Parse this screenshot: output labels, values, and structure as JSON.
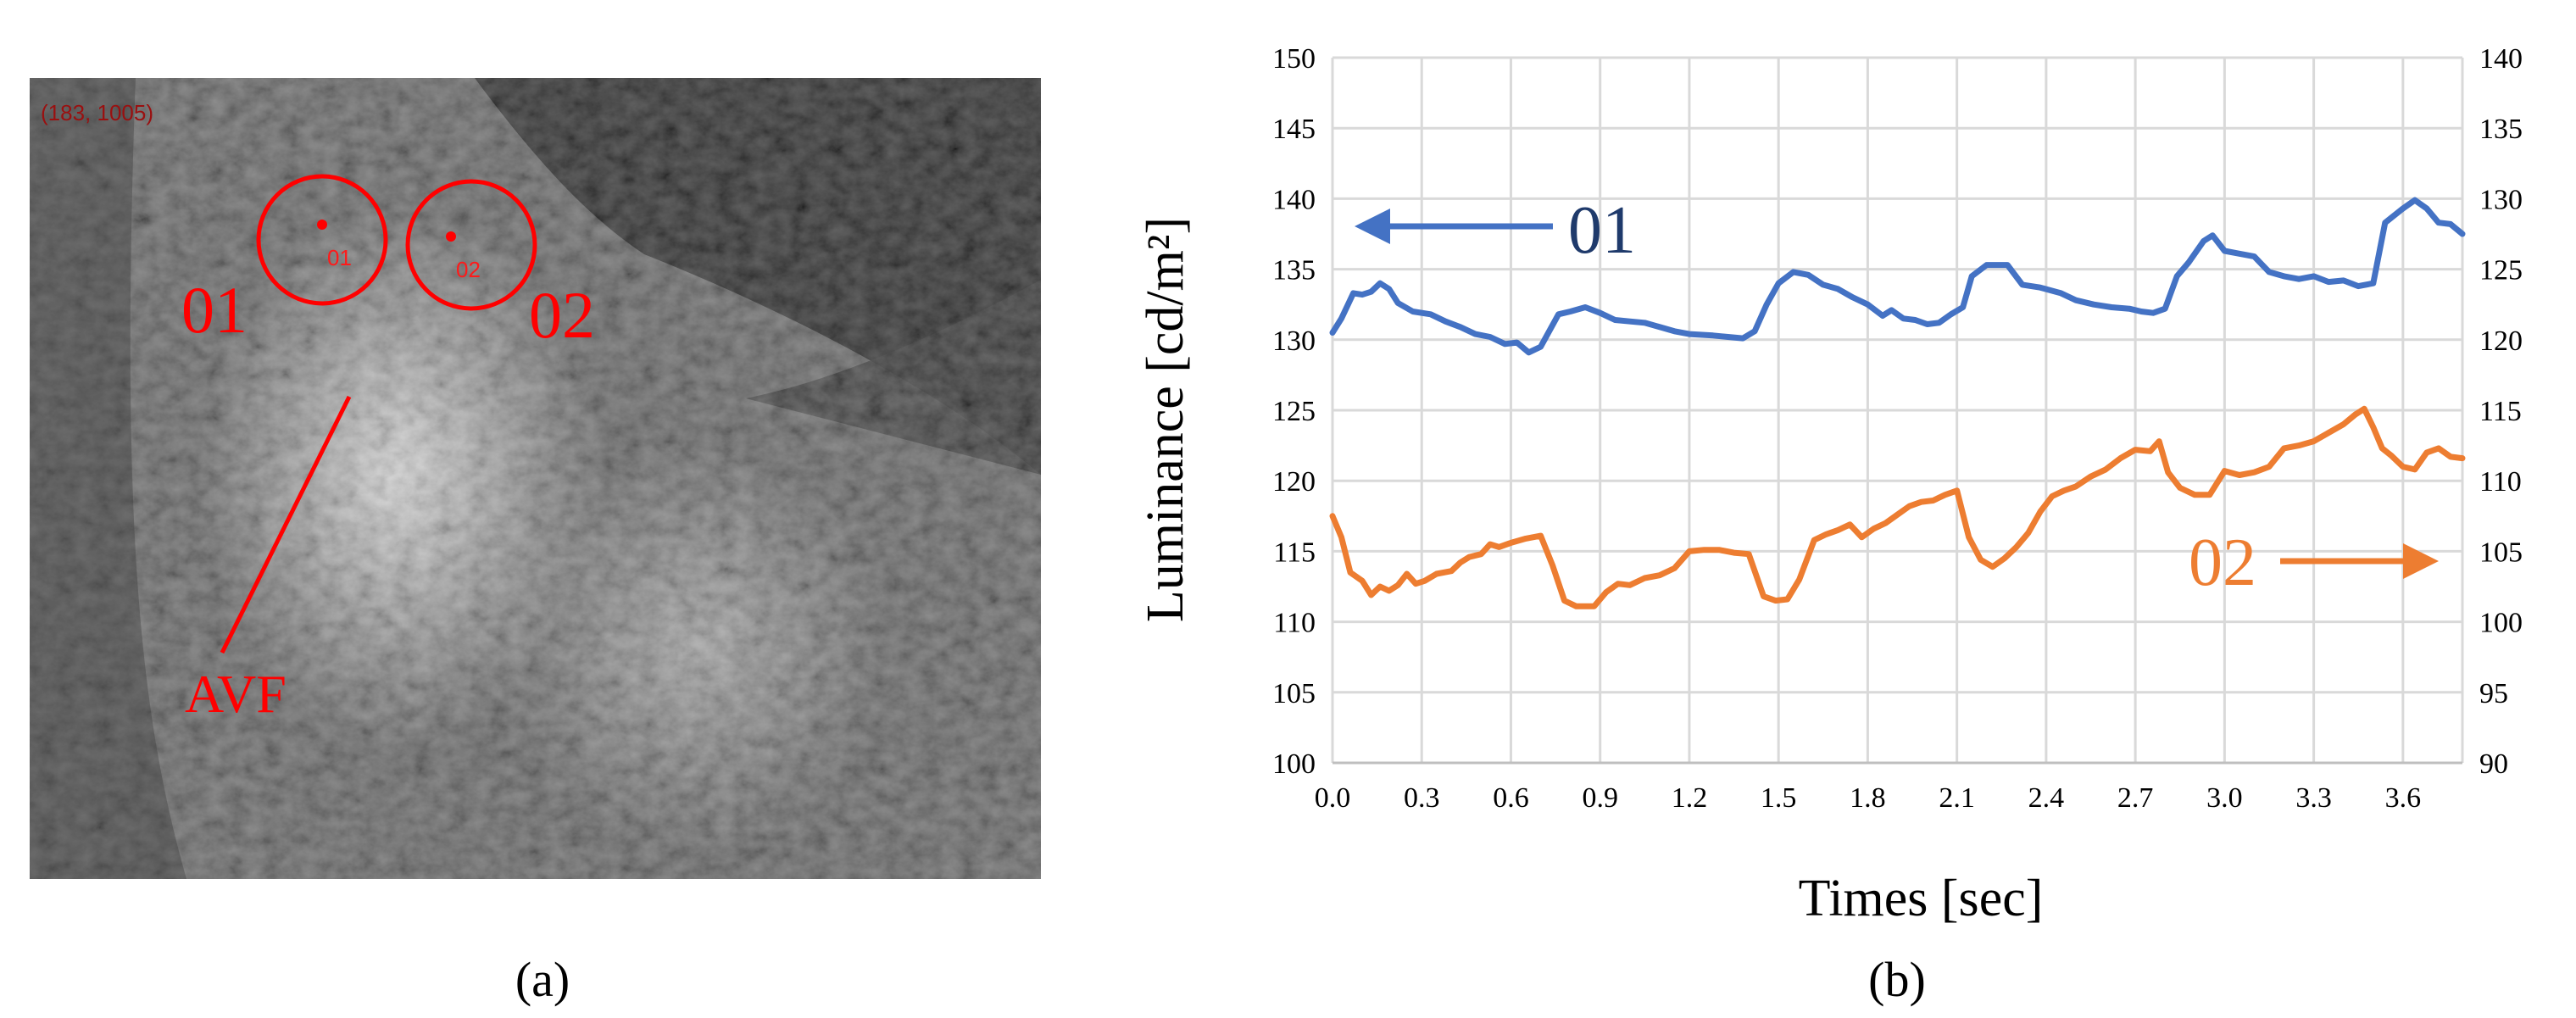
{
  "panels": {
    "a": {
      "label": "(a)",
      "coord_readout": "(183, 1005)",
      "markers": [
        "01",
        "02"
      ],
      "roi_labels": [
        "01",
        "02"
      ],
      "annotation": "AVF",
      "marker_color": "#ff0000"
    },
    "b": {
      "label": "(b)"
    }
  },
  "chart_data": {
    "type": "line",
    "title": "",
    "xlabel": "Times [sec]",
    "ylabel": "Luminance  [cd/m²]",
    "x_ticks": [
      "0.0",
      "0.3",
      "0.6",
      "0.9",
      "1.2",
      "1.5",
      "1.8",
      "2.1",
      "2.4",
      "2.7",
      "3.0",
      "3.3",
      "3.6"
    ],
    "xlim": [
      0,
      3.8
    ],
    "left_ylim": [
      100,
      150
    ],
    "left_ticks": [
      "100",
      "105",
      "110",
      "115",
      "120",
      "125",
      "130",
      "135",
      "140",
      "145",
      "150"
    ],
    "right_ylim": [
      90,
      140
    ],
    "right_ticks": [
      "90",
      "95",
      "100",
      "105",
      "110",
      "115",
      "120",
      "125",
      "130",
      "135",
      "140"
    ],
    "grid": true,
    "series": [
      {
        "name": "01",
        "axis": "left",
        "color": "#4472c4",
        "arrow": "left",
        "points": [
          [
            0.0,
            130.5
          ],
          [
            0.03,
            131.5
          ],
          [
            0.07,
            133.3
          ],
          [
            0.1,
            133.2
          ],
          [
            0.13,
            133.4
          ],
          [
            0.16,
            134.0
          ],
          [
            0.19,
            133.6
          ],
          [
            0.22,
            132.6
          ],
          [
            0.27,
            132.0
          ],
          [
            0.33,
            131.8
          ],
          [
            0.38,
            131.3
          ],
          [
            0.43,
            130.9
          ],
          [
            0.48,
            130.4
          ],
          [
            0.53,
            130.2
          ],
          [
            0.58,
            129.7
          ],
          [
            0.62,
            129.8
          ],
          [
            0.66,
            129.1
          ],
          [
            0.7,
            129.5
          ],
          [
            0.76,
            131.8
          ],
          [
            0.8,
            132.0
          ],
          [
            0.85,
            132.3
          ],
          [
            0.9,
            131.9
          ],
          [
            0.95,
            131.4
          ],
          [
            1.0,
            131.3
          ],
          [
            1.05,
            131.2
          ],
          [
            1.1,
            130.9
          ],
          [
            1.15,
            130.6
          ],
          [
            1.2,
            130.4
          ],
          [
            1.28,
            130.3
          ],
          [
            1.33,
            130.2
          ],
          [
            1.38,
            130.1
          ],
          [
            1.42,
            130.6
          ],
          [
            1.46,
            132.5
          ],
          [
            1.5,
            134.0
          ],
          [
            1.55,
            134.8
          ],
          [
            1.6,
            134.6
          ],
          [
            1.65,
            133.9
          ],
          [
            1.7,
            133.6
          ],
          [
            1.75,
            133.0
          ],
          [
            1.8,
            132.5
          ],
          [
            1.85,
            131.7
          ],
          [
            1.88,
            132.1
          ],
          [
            1.92,
            131.5
          ],
          [
            1.96,
            131.4
          ],
          [
            2.0,
            131.1
          ],
          [
            2.04,
            131.2
          ],
          [
            2.08,
            131.8
          ],
          [
            2.12,
            132.3
          ],
          [
            2.15,
            134.5
          ],
          [
            2.2,
            135.3
          ],
          [
            2.27,
            135.3
          ],
          [
            2.32,
            133.9
          ],
          [
            2.38,
            133.7
          ],
          [
            2.45,
            133.3
          ],
          [
            2.5,
            132.8
          ],
          [
            2.56,
            132.5
          ],
          [
            2.62,
            132.3
          ],
          [
            2.68,
            132.2
          ],
          [
            2.72,
            132.0
          ],
          [
            2.76,
            131.9
          ],
          [
            2.8,
            132.2
          ],
          [
            2.84,
            134.5
          ],
          [
            2.88,
            135.5
          ],
          [
            2.93,
            137.0
          ],
          [
            2.96,
            137.4
          ],
          [
            3.0,
            136.3
          ],
          [
            3.05,
            136.1
          ],
          [
            3.1,
            135.9
          ],
          [
            3.15,
            134.8
          ],
          [
            3.2,
            134.5
          ],
          [
            3.25,
            134.3
          ],
          [
            3.3,
            134.5
          ],
          [
            3.35,
            134.1
          ],
          [
            3.4,
            134.2
          ],
          [
            3.45,
            133.8
          ],
          [
            3.5,
            134.0
          ],
          [
            3.54,
            138.3
          ],
          [
            3.6,
            139.3
          ],
          [
            3.64,
            139.9
          ],
          [
            3.68,
            139.3
          ],
          [
            3.72,
            138.3
          ],
          [
            3.76,
            138.2
          ],
          [
            3.8,
            137.5
          ]
        ]
      },
      {
        "name": "02",
        "axis": "right",
        "color": "#ed7d31",
        "arrow": "right",
        "points": [
          [
            0.0,
            107.5
          ],
          [
            0.03,
            106.0
          ],
          [
            0.06,
            103.5
          ],
          [
            0.1,
            102.9
          ],
          [
            0.13,
            101.9
          ],
          [
            0.16,
            102.5
          ],
          [
            0.19,
            102.2
          ],
          [
            0.22,
            102.6
          ],
          [
            0.25,
            103.4
          ],
          [
            0.28,
            102.7
          ],
          [
            0.31,
            102.9
          ],
          [
            0.35,
            103.4
          ],
          [
            0.4,
            103.6
          ],
          [
            0.43,
            104.2
          ],
          [
            0.46,
            104.6
          ],
          [
            0.5,
            104.8
          ],
          [
            0.53,
            105.5
          ],
          [
            0.56,
            105.3
          ],
          [
            0.6,
            105.6
          ],
          [
            0.65,
            105.9
          ],
          [
            0.7,
            106.1
          ],
          [
            0.74,
            104.0
          ],
          [
            0.78,
            101.5
          ],
          [
            0.82,
            101.1
          ],
          [
            0.88,
            101.1
          ],
          [
            0.92,
            102.1
          ],
          [
            0.96,
            102.7
          ],
          [
            1.0,
            102.6
          ],
          [
            1.05,
            103.1
          ],
          [
            1.1,
            103.3
          ],
          [
            1.15,
            103.8
          ],
          [
            1.2,
            105.0
          ],
          [
            1.25,
            105.1
          ],
          [
            1.3,
            105.1
          ],
          [
            1.35,
            104.9
          ],
          [
            1.4,
            104.8
          ],
          [
            1.45,
            101.8
          ],
          [
            1.49,
            101.5
          ],
          [
            1.53,
            101.6
          ],
          [
            1.57,
            103.0
          ],
          [
            1.62,
            105.8
          ],
          [
            1.66,
            106.2
          ],
          [
            1.7,
            106.5
          ],
          [
            1.74,
            106.9
          ],
          [
            1.78,
            106.0
          ],
          [
            1.82,
            106.6
          ],
          [
            1.86,
            107.0
          ],
          [
            1.9,
            107.6
          ],
          [
            1.94,
            108.2
          ],
          [
            1.98,
            108.5
          ],
          [
            2.02,
            108.6
          ],
          [
            2.06,
            109.0
          ],
          [
            2.1,
            109.3
          ],
          [
            2.14,
            106.0
          ],
          [
            2.18,
            104.4
          ],
          [
            2.22,
            103.9
          ],
          [
            2.26,
            104.5
          ],
          [
            2.3,
            105.3
          ],
          [
            2.34,
            106.3
          ],
          [
            2.38,
            107.8
          ],
          [
            2.42,
            108.9
          ],
          [
            2.46,
            109.3
          ],
          [
            2.5,
            109.6
          ],
          [
            2.55,
            110.3
          ],
          [
            2.6,
            110.8
          ],
          [
            2.65,
            111.6
          ],
          [
            2.7,
            112.2
          ],
          [
            2.75,
            112.1
          ],
          [
            2.78,
            112.8
          ],
          [
            2.81,
            110.6
          ],
          [
            2.85,
            109.5
          ],
          [
            2.9,
            109.0
          ],
          [
            2.95,
            109.0
          ],
          [
            3.0,
            110.7
          ],
          [
            3.05,
            110.4
          ],
          [
            3.1,
            110.6
          ],
          [
            3.15,
            111.0
          ],
          [
            3.2,
            112.3
          ],
          [
            3.25,
            112.5
          ],
          [
            3.3,
            112.8
          ],
          [
            3.35,
            113.4
          ],
          [
            3.4,
            114.0
          ],
          [
            3.44,
            114.7
          ],
          [
            3.47,
            115.1
          ],
          [
            3.5,
            113.8
          ],
          [
            3.53,
            112.3
          ],
          [
            3.56,
            111.8
          ],
          [
            3.6,
            111.0
          ],
          [
            3.64,
            110.8
          ],
          [
            3.68,
            112.0
          ],
          [
            3.72,
            112.3
          ],
          [
            3.76,
            111.7
          ],
          [
            3.8,
            111.6
          ]
        ]
      }
    ]
  }
}
